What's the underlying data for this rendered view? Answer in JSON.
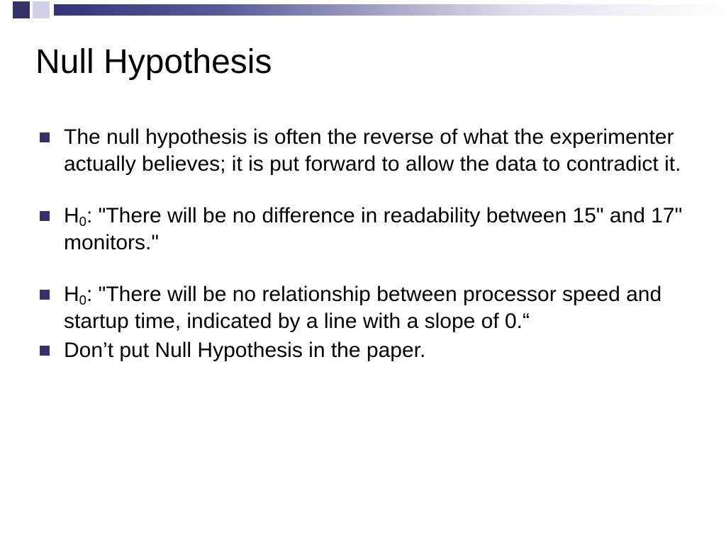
{
  "decoration": {
    "square_dark_color": "#333366",
    "square_light_color": "#d0d0e8",
    "gradient_start": "#333377",
    "gradient_end": "#ffffff"
  },
  "slide": {
    "title": "Null Hypothesis",
    "title_fontsize": 48,
    "title_color": "#000000",
    "body_fontsize": 30,
    "body_color": "#000000",
    "bullet_color": "#333366",
    "background_color": "#ffffff",
    "bullets": [
      {
        "text": "The null hypothesis is often the reverse of what the experimenter actually believes; it is put forward to allow the data to contradict it.",
        "has_sub": false,
        "tight": false
      },
      {
        "prefix": "H",
        "sub": "0",
        "rest": ": \"There will be no difference in readability between 15\" and 17\" monitors.\"",
        "has_sub": true,
        "tight": false
      },
      {
        "prefix": "H",
        "sub": "0",
        "rest": ": \"There will be no relationship between processor speed and startup time, indicated by a line with a slope of 0.“",
        "has_sub": true,
        "tight": true
      },
      {
        "text": "Don’t put Null Hypothesis in the paper.",
        "has_sub": false,
        "tight": false
      }
    ]
  }
}
